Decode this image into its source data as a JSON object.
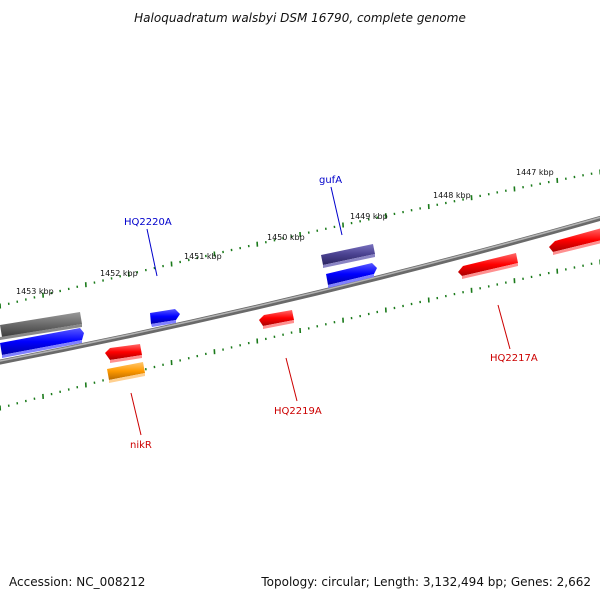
{
  "title": "Haloquadratum walsbyi DSM 16790, complete genome",
  "footer": {
    "accession": "Accession: NC_008212",
    "summary": "Topology: circular; Length: 3,132,494 bp; Genes: 2,662"
  },
  "ruler_labels": [
    {
      "id": "1453",
      "text": "1453 kbp"
    },
    {
      "id": "1452",
      "text": "1452 kbp"
    },
    {
      "id": "1451",
      "text": "1451 kbp"
    },
    {
      "id": "1450",
      "text": "1450 kbp"
    },
    {
      "id": "1449",
      "text": "1449 kbp"
    },
    {
      "id": "1448",
      "text": "1448 kbp"
    },
    {
      "id": "1447",
      "text": "1447 kbp"
    }
  ],
  "gene_labels": [
    {
      "id": "hq2220a",
      "text": "HQ2220A",
      "color": "#0000cc"
    },
    {
      "id": "gufa",
      "text": "gufA",
      "color": "#0000cc"
    },
    {
      "id": "nikr",
      "text": "nikR",
      "color": "#cc0000"
    },
    {
      "id": "hq2219a",
      "text": "HQ2219A",
      "color": "#cc0000"
    },
    {
      "id": "hq2217a",
      "text": "HQ2217A",
      "color": "#cc0000"
    }
  ],
  "colors": {
    "backbone": "#8c8c8c",
    "tick_marks": "#1a7a1a",
    "forward_gene": "#0000ff",
    "reverse_gene": "#ff0000",
    "pseudo_gene": "#6e6e6e",
    "rna_gene": "#ffa500",
    "tagged_gene": "#4a4190"
  }
}
